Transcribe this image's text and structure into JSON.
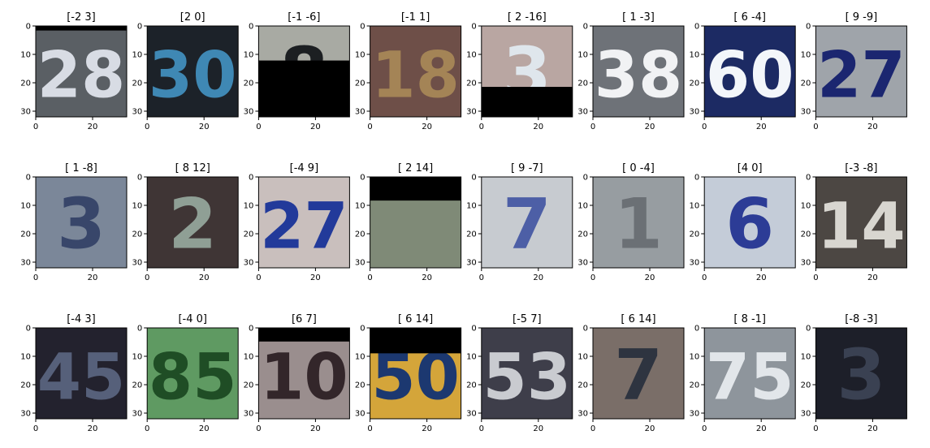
{
  "chart_data": {
    "type": "image-grid",
    "rows": 3,
    "cols": 8,
    "image_extent": [
      0,
      32
    ],
    "xticks": [
      "0",
      "20"
    ],
    "yticks": [
      "0",
      "10",
      "20",
      "30"
    ],
    "panels": [
      {
        "title": "[-2  3]",
        "digits": "28",
        "bg": "#5a5f64",
        "fg": "#d8dce4",
        "mask": "top",
        "mask_frac": 0.05
      },
      {
        "title": "[2 0]",
        "digits": "30",
        "bg": "#1c2229",
        "fg": "#3f88b4",
        "mask": "none",
        "mask_frac": 0
      },
      {
        "title": "[-1 -6]",
        "digits": "8",
        "bg": "#a8aaa3",
        "fg": "#1c1f22",
        "mask": "bottom",
        "mask_frac": 0.62
      },
      {
        "title": "[-1  1]",
        "digits": "18",
        "bg": "#6e4f48",
        "fg": "#a48456",
        "mask": "none",
        "mask_frac": 0
      },
      {
        "title": "[  2 -16]",
        "digits": "3",
        "bg": "#b9a6a2",
        "fg": "#dfe6ec",
        "mask": "bottom",
        "mask_frac": 0.33
      },
      {
        "title": "[ 1 -3]",
        "digits": "38",
        "bg": "#6e7278",
        "fg": "#f1f2f4",
        "mask": "none",
        "mask_frac": 0
      },
      {
        "title": "[ 6 -4]",
        "digits": "60",
        "bg": "#1c2a63",
        "fg": "#f3f6fa",
        "mask": "none",
        "mask_frac": 0
      },
      {
        "title": "[ 9 -9]",
        "digits": "27",
        "bg": "#9fa4aa",
        "fg": "#1b2670",
        "mask": "none",
        "mask_frac": 0
      },
      {
        "title": "[ 1 -8]",
        "digits": "3",
        "bg": "#7b8799",
        "fg": "#38466a",
        "mask": "none",
        "mask_frac": 0
      },
      {
        "title": "[ 8 12]",
        "digits": "2",
        "bg": "#3f3535",
        "fg": "#8f9f95",
        "mask": "none",
        "mask_frac": 0
      },
      {
        "title": "[-4  9]",
        "digits": "27",
        "bg": "#c9bfbd",
        "fg": "#223a9a",
        "mask": "none",
        "mask_frac": 0
      },
      {
        "title": "[ 2 14]",
        "digits": "",
        "bg": "#7f8a77",
        "fg": "#9aa088",
        "mask": "top",
        "mask_frac": 0.26
      },
      {
        "title": "[ 9 -7]",
        "digits": "7",
        "bg": "#c7cbd0",
        "fg": "#4d5fa6",
        "mask": "none",
        "mask_frac": 0
      },
      {
        "title": "[ 0 -4]",
        "digits": "1",
        "bg": "#979da1",
        "fg": "#6b7075",
        "mask": "none",
        "mask_frac": 0
      },
      {
        "title": "[4 0]",
        "digits": "6",
        "bg": "#c4ccd8",
        "fg": "#2c3c96",
        "mask": "none",
        "mask_frac": 0
      },
      {
        "title": "[-3 -8]",
        "digits": "14",
        "bg": "#4c4743",
        "fg": "#d8d6d0",
        "mask": "none",
        "mask_frac": 0
      },
      {
        "title": "[-4  3]",
        "digits": "45",
        "bg": "#23222e",
        "fg": "#56607a",
        "mask": "none",
        "mask_frac": 0
      },
      {
        "title": "[-4  0]",
        "digits": "85",
        "bg": "#5f9a62",
        "fg": "#1f4d25",
        "mask": "none",
        "mask_frac": 0
      },
      {
        "title": "[6 7]",
        "digits": "10",
        "bg": "#9a8e8e",
        "fg": "#33262a",
        "mask": "top",
        "mask_frac": 0.15
      },
      {
        "title": "[ 6 14]",
        "digits": "50",
        "bg": "#d4a53a",
        "fg": "#1c3870",
        "mask": "top",
        "mask_frac": 0.28
      },
      {
        "title": "[-5  7]",
        "digits": "53",
        "bg": "#3e3e4a",
        "fg": "#c9cbd0",
        "mask": "none",
        "mask_frac": 0
      },
      {
        "title": "[ 6 14]",
        "digits": "7",
        "bg": "#7a6e68",
        "fg": "#2e3440",
        "mask": "top",
        "mask_frac": 0
      },
      {
        "title": "[ 8 -1]",
        "digits": "75",
        "bg": "#8e959c",
        "fg": "#e2e6ea",
        "mask": "none",
        "mask_frac": 0
      },
      {
        "title": "[-8 -3]",
        "digits": "3",
        "bg": "#1d1f29",
        "fg": "#3a4152",
        "mask": "none",
        "mask_frac": 0
      }
    ]
  }
}
